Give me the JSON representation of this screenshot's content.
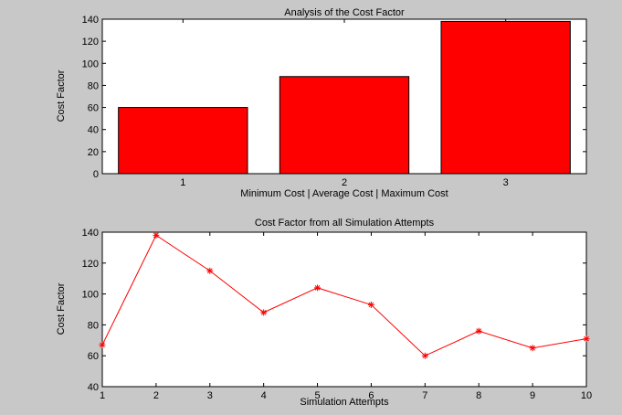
{
  "colors": {
    "figure_bg": "#c8c8c8",
    "axes_bg": "#ffffff",
    "bar_fill": "#ff0000",
    "line_color": "#ff0000"
  },
  "chart_data": [
    {
      "type": "bar",
      "title": "Analysis of the Cost Factor",
      "xlabel": "Minimum Cost | Average Cost | Maximum Cost",
      "ylabel": "Cost Factor",
      "categories": [
        "1",
        "2",
        "3"
      ],
      "values": [
        60,
        88,
        138
      ],
      "ylim": [
        0,
        140
      ],
      "yticks": [
        0,
        20,
        40,
        60,
        80,
        100,
        120,
        140
      ],
      "grid": false
    },
    {
      "type": "line",
      "title": "Cost Factor from all Simulation Attempts",
      "xlabel": "Simulation Attempts",
      "ylabel": "Cost Factor",
      "marker": "asterisk",
      "x": [
        1,
        2,
        3,
        4,
        5,
        6,
        7,
        8,
        9,
        10
      ],
      "y": [
        67,
        138,
        115,
        88,
        104,
        93,
        60,
        76,
        65,
        71
      ],
      "xlim": [
        1,
        10
      ],
      "ylim": [
        40,
        140
      ],
      "xticks": [
        1,
        2,
        3,
        4,
        5,
        6,
        7,
        8,
        9,
        10
      ],
      "yticks": [
        40,
        60,
        80,
        100,
        120,
        140
      ],
      "grid": false
    }
  ]
}
